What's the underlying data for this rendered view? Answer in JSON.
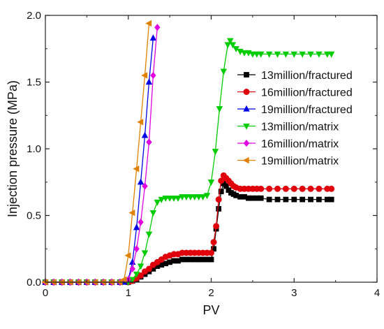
{
  "chart_data": {
    "type": "line",
    "title": "",
    "xlabel": "PV",
    "ylabel": "Injection pressure (MPa)",
    "xlim": [
      0,
      4
    ],
    "ylim": [
      0,
      2.0
    ],
    "x_ticks": [
      "0",
      "1",
      "2",
      "3",
      "4"
    ],
    "y_ticks": [
      "0.0",
      "0.5",
      "1.0",
      "1.5",
      "2.0"
    ],
    "grid": false,
    "legend_position": "right",
    "series": [
      {
        "name": "13million/fractured",
        "color": "#000000",
        "marker": "square",
        "x": [
          0.0,
          0.1,
          0.2,
          0.3,
          0.4,
          0.5,
          0.6,
          0.7,
          0.8,
          0.9,
          1.0,
          1.05,
          1.1,
          1.15,
          1.2,
          1.25,
          1.3,
          1.35,
          1.4,
          1.45,
          1.5,
          1.55,
          1.6,
          1.65,
          1.7,
          1.75,
          1.8,
          1.85,
          1.9,
          1.95,
          2.0,
          2.03,
          2.06,
          2.09,
          2.12,
          2.15,
          2.18,
          2.21,
          2.24,
          2.27,
          2.3,
          2.35,
          2.4,
          2.45,
          2.5,
          2.55,
          2.6,
          2.7,
          2.8,
          2.9,
          3.0,
          3.1,
          3.2,
          3.3,
          3.4,
          3.45
        ],
        "y": [
          0.0,
          0.0,
          0.0,
          0.0,
          0.0,
          0.0,
          0.0,
          0.0,
          0.0,
          0.0,
          0.0,
          0.01,
          0.02,
          0.04,
          0.06,
          0.08,
          0.1,
          0.12,
          0.13,
          0.14,
          0.15,
          0.16,
          0.16,
          0.17,
          0.17,
          0.17,
          0.17,
          0.17,
          0.17,
          0.17,
          0.17,
          0.25,
          0.4,
          0.55,
          0.68,
          0.74,
          0.72,
          0.69,
          0.67,
          0.66,
          0.65,
          0.64,
          0.64,
          0.63,
          0.63,
          0.63,
          0.63,
          0.62,
          0.62,
          0.62,
          0.62,
          0.62,
          0.62,
          0.62,
          0.62,
          0.62
        ]
      },
      {
        "name": "16million/fractured",
        "color": "#e0000c",
        "marker": "circle",
        "x": [
          0.0,
          0.1,
          0.2,
          0.3,
          0.4,
          0.5,
          0.6,
          0.7,
          0.8,
          0.9,
          1.0,
          1.05,
          1.1,
          1.15,
          1.2,
          1.25,
          1.3,
          1.35,
          1.4,
          1.45,
          1.5,
          1.55,
          1.6,
          1.65,
          1.7,
          1.75,
          1.8,
          1.85,
          1.9,
          1.95,
          2.0,
          2.03,
          2.06,
          2.09,
          2.12,
          2.15,
          2.18,
          2.21,
          2.24,
          2.27,
          2.3,
          2.35,
          2.4,
          2.45,
          2.5,
          2.55,
          2.6,
          2.7,
          2.8,
          2.9,
          3.0,
          3.1,
          3.2,
          3.3,
          3.4,
          3.45
        ],
        "y": [
          0.0,
          0.0,
          0.0,
          0.0,
          0.0,
          0.0,
          0.0,
          0.0,
          0.0,
          0.0,
          0.0,
          0.01,
          0.03,
          0.05,
          0.08,
          0.1,
          0.13,
          0.15,
          0.17,
          0.19,
          0.2,
          0.21,
          0.21,
          0.22,
          0.22,
          0.22,
          0.22,
          0.22,
          0.22,
          0.22,
          0.22,
          0.3,
          0.42,
          0.62,
          0.76,
          0.8,
          0.78,
          0.76,
          0.74,
          0.72,
          0.71,
          0.7,
          0.7,
          0.7,
          0.7,
          0.7,
          0.7,
          0.7,
          0.7,
          0.7,
          0.7,
          0.7,
          0.7,
          0.7,
          0.7,
          0.7
        ]
      },
      {
        "name": "19million/fractured",
        "color": "#0000e6",
        "marker": "triangle-up",
        "x": [
          0.0,
          0.1,
          0.2,
          0.3,
          0.4,
          0.5,
          0.6,
          0.7,
          0.8,
          0.9,
          0.95,
          1.0,
          1.05,
          1.1,
          1.15,
          1.2,
          1.25,
          1.3
        ],
        "y": [
          0.0,
          0.0,
          0.0,
          0.0,
          0.0,
          0.0,
          0.0,
          0.0,
          0.0,
          0.0,
          0.0,
          0.02,
          0.15,
          0.41,
          0.75,
          1.1,
          1.5,
          1.83
        ]
      },
      {
        "name": "13million/matrix",
        "color": "#00cc00",
        "marker": "triangle-down",
        "x": [
          0.0,
          0.1,
          0.2,
          0.3,
          0.4,
          0.5,
          0.6,
          0.7,
          0.8,
          0.9,
          1.0,
          1.05,
          1.1,
          1.15,
          1.2,
          1.25,
          1.3,
          1.35,
          1.4,
          1.45,
          1.5,
          1.55,
          1.6,
          1.65,
          1.7,
          1.75,
          1.8,
          1.85,
          1.9,
          1.95,
          2.0,
          2.05,
          2.1,
          2.15,
          2.2,
          2.23,
          2.26,
          2.3,
          2.35,
          2.4,
          2.45,
          2.5,
          2.55,
          2.6,
          2.7,
          2.8,
          2.9,
          3.0,
          3.1,
          3.2,
          3.3,
          3.4,
          3.45
        ],
        "y": [
          0.0,
          0.0,
          0.0,
          0.0,
          0.0,
          0.0,
          0.0,
          0.0,
          0.0,
          0.0,
          0.0,
          0.02,
          0.06,
          0.12,
          0.22,
          0.36,
          0.52,
          0.6,
          0.62,
          0.63,
          0.63,
          0.63,
          0.63,
          0.64,
          0.64,
          0.64,
          0.64,
          0.64,
          0.64,
          0.65,
          0.75,
          0.98,
          1.3,
          1.58,
          1.78,
          1.81,
          1.78,
          1.75,
          1.73,
          1.72,
          1.72,
          1.71,
          1.71,
          1.71,
          1.71,
          1.71,
          1.71,
          1.71,
          1.71,
          1.71,
          1.71,
          1.71,
          1.71
        ]
      },
      {
        "name": "16million/matrix",
        "color": "#e000e0",
        "marker": "diamond",
        "x": [
          0.0,
          0.1,
          0.2,
          0.3,
          0.4,
          0.5,
          0.6,
          0.7,
          0.8,
          0.9,
          1.0,
          1.05,
          1.1,
          1.15,
          1.2,
          1.25,
          1.3,
          1.35
        ],
        "y": [
          0.0,
          0.0,
          0.0,
          0.0,
          0.0,
          0.0,
          0.0,
          0.0,
          0.0,
          0.0,
          0.02,
          0.1,
          0.25,
          0.45,
          0.72,
          1.05,
          1.55,
          1.91
        ]
      },
      {
        "name": "19million/matrix",
        "color": "#e08000",
        "marker": "triangle-left",
        "x": [
          0.0,
          0.1,
          0.2,
          0.3,
          0.4,
          0.5,
          0.6,
          0.7,
          0.8,
          0.9,
          0.95,
          1.0,
          1.05,
          1.1,
          1.15,
          1.2,
          1.25
        ],
        "y": [
          0.0,
          0.0,
          0.0,
          0.0,
          0.0,
          0.0,
          0.0,
          0.0,
          0.0,
          0.0,
          0.02,
          0.2,
          0.52,
          0.85,
          1.2,
          1.55,
          1.94
        ]
      }
    ]
  }
}
